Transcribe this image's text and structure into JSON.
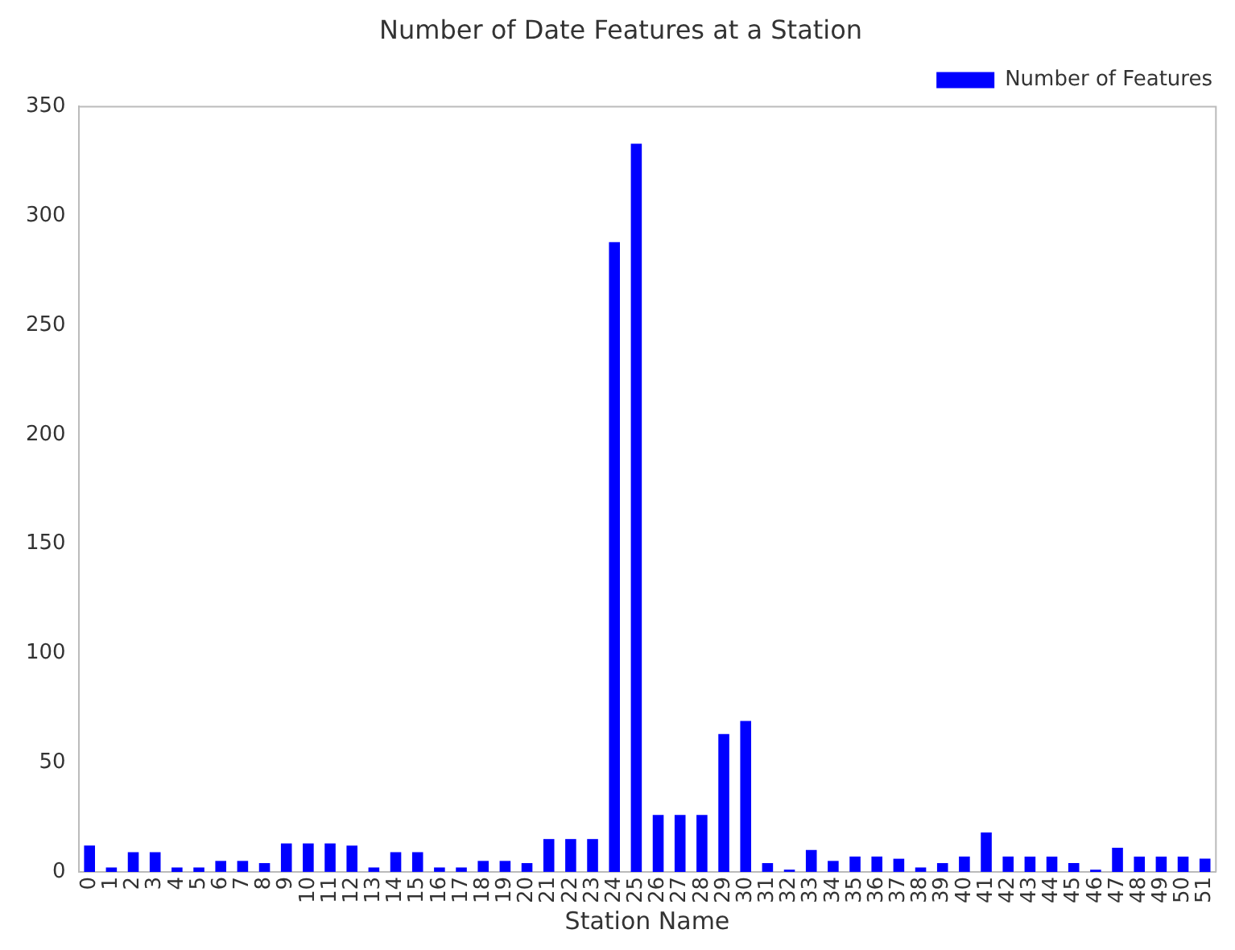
{
  "chart_data": {
    "type": "bar",
    "title": "Number of Date Features at a Station",
    "xlabel": "Station Name",
    "categories": [
      "0",
      "1",
      "2",
      "3",
      "4",
      "5",
      "6",
      "7",
      "8",
      "9",
      "10",
      "11",
      "12",
      "13",
      "14",
      "15",
      "16",
      "17",
      "18",
      "19",
      "20",
      "21",
      "22",
      "23",
      "24",
      "25",
      "26",
      "27",
      "28",
      "29",
      "30",
      "31",
      "32",
      "33",
      "34",
      "35",
      "36",
      "37",
      "38",
      "39",
      "40",
      "41",
      "42",
      "43",
      "44",
      "45",
      "46",
      "47",
      "48",
      "49",
      "50",
      "51"
    ],
    "series": [
      {
        "name": "Number of Features",
        "color": "#0000ff",
        "values": [
          12,
          2,
          9,
          9,
          2,
          2,
          5,
          5,
          4,
          13,
          13,
          13,
          12,
          2,
          9,
          9,
          2,
          2,
          5,
          5,
          4,
          15,
          15,
          15,
          288,
          333,
          26,
          26,
          26,
          63,
          69,
          4,
          1,
          10,
          5,
          7,
          7,
          6,
          2,
          4,
          7,
          18,
          7,
          7,
          7,
          4,
          1,
          11,
          7,
          7,
          7,
          6
        ]
      }
    ],
    "ylim": [
      0,
      350
    ],
    "yticks": [
      0,
      50,
      100,
      150,
      200,
      250,
      300,
      350
    ],
    "grid": false,
    "legend": "top right"
  }
}
